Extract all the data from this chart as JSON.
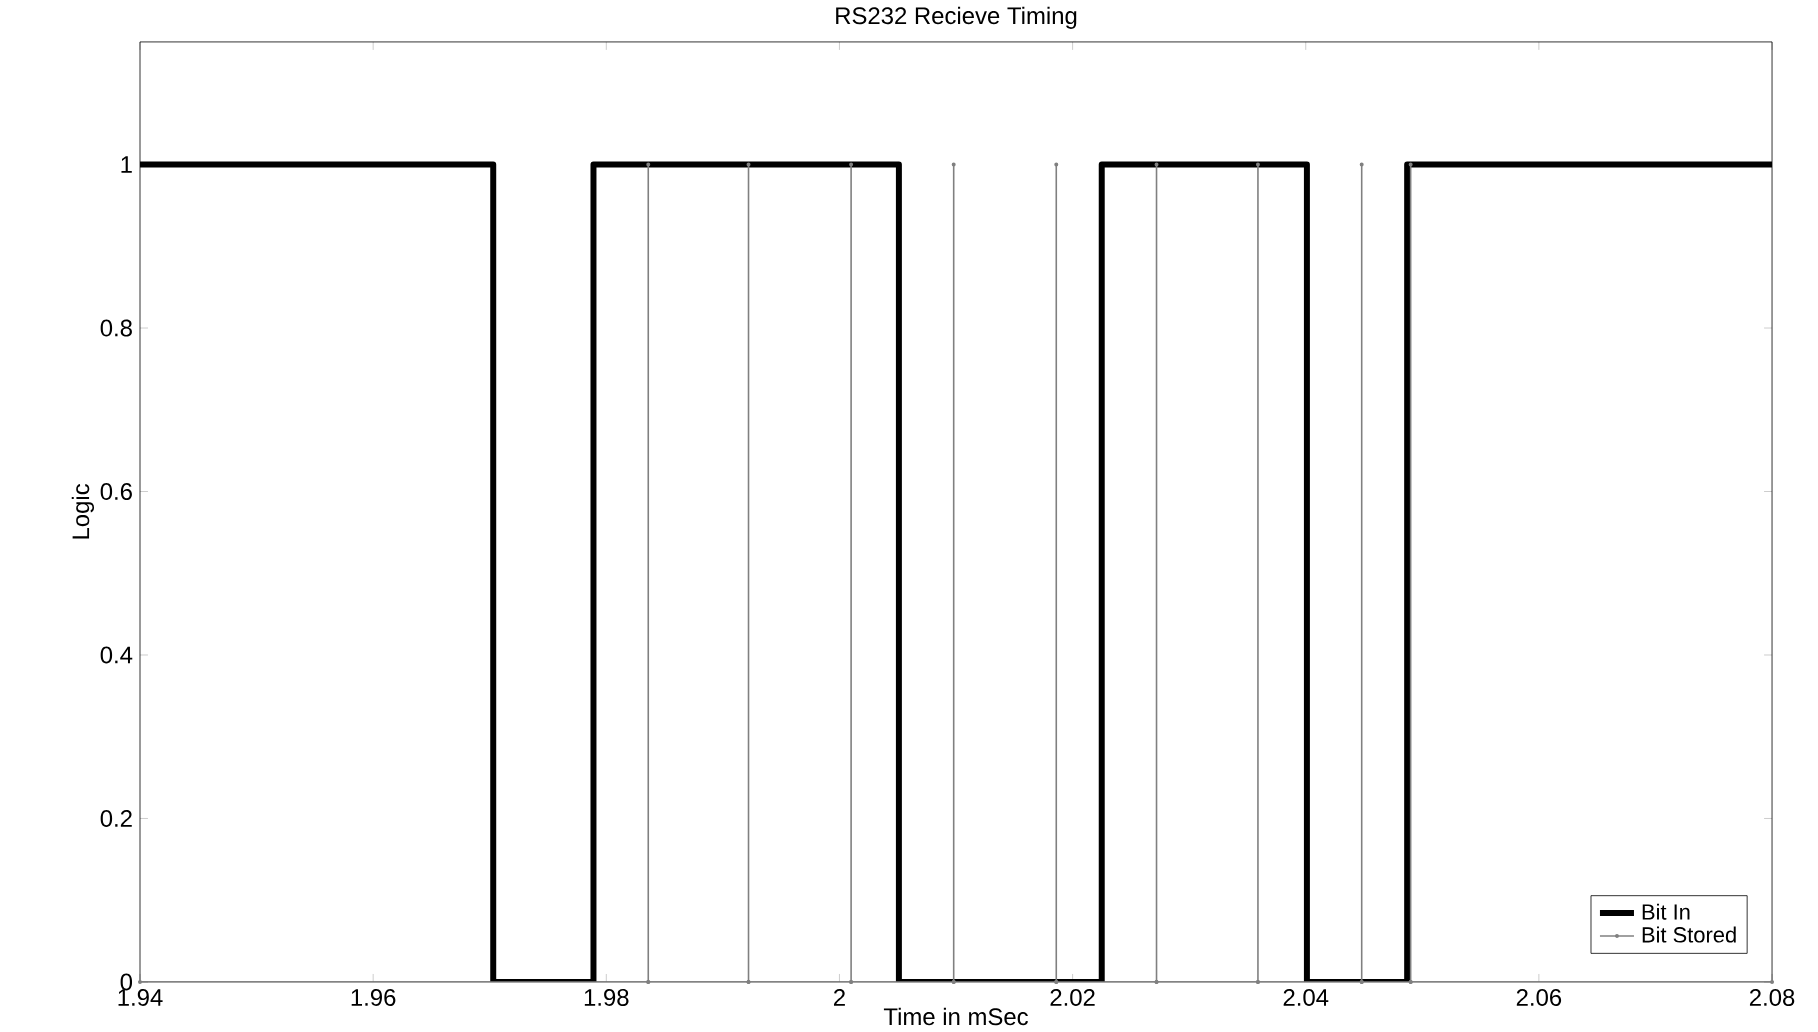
{
  "chart_data": {
    "type": "line",
    "title": "RS232 Recieve Timing",
    "xlabel": "Time in mSec",
    "ylabel": "Logic",
    "series": [
      {
        "name": "Bit In",
        "color": "#000000",
        "marker": "none",
        "x": [
          1.94,
          1.9703,
          1.9703,
          1.9789,
          1.9789,
          2.0051,
          2.0051,
          2.0225,
          2.0225,
          2.0401,
          2.0401,
          2.0487,
          2.0487,
          2.08
        ],
        "values": [
          1,
          1,
          0,
          0,
          1,
          1,
          0,
          0,
          1,
          1,
          0,
          0,
          1,
          1
        ]
      },
      {
        "name": "Bit Stored",
        "color": "#808080",
        "marker": "circle",
        "x": [
          1.94,
          1.9836,
          1.9836,
          1.9836,
          1.9922,
          1.9922,
          1.9922,
          2.001,
          2.001,
          2.001,
          2.0098,
          2.0098,
          2.0098,
          2.0186,
          2.0186,
          2.0186,
          2.0272,
          2.0272,
          2.0272,
          2.0359,
          2.0359,
          2.0359,
          2.0448,
          2.0448,
          2.0448,
          2.049,
          2.049,
          2.049,
          2.08
        ],
        "values": [
          0,
          0,
          1,
          0,
          0,
          1,
          0,
          0,
          1,
          0,
          0,
          1,
          0,
          0,
          1,
          0,
          0,
          1,
          0,
          0,
          1,
          0,
          0,
          1,
          0,
          0,
          1,
          0,
          0
        ]
      }
    ],
    "xlim": [
      1.94,
      2.08
    ],
    "xticks": [
      1.94,
      1.96,
      1.98,
      2,
      2.02,
      2.04,
      2.06,
      2.08
    ],
    "ylim": [
      0,
      1.15
    ],
    "yticks": [
      0,
      0.2,
      0.4,
      0.6,
      0.8,
      1
    ],
    "grid": false,
    "legend": "bottom right",
    "line_style": "solid"
  }
}
